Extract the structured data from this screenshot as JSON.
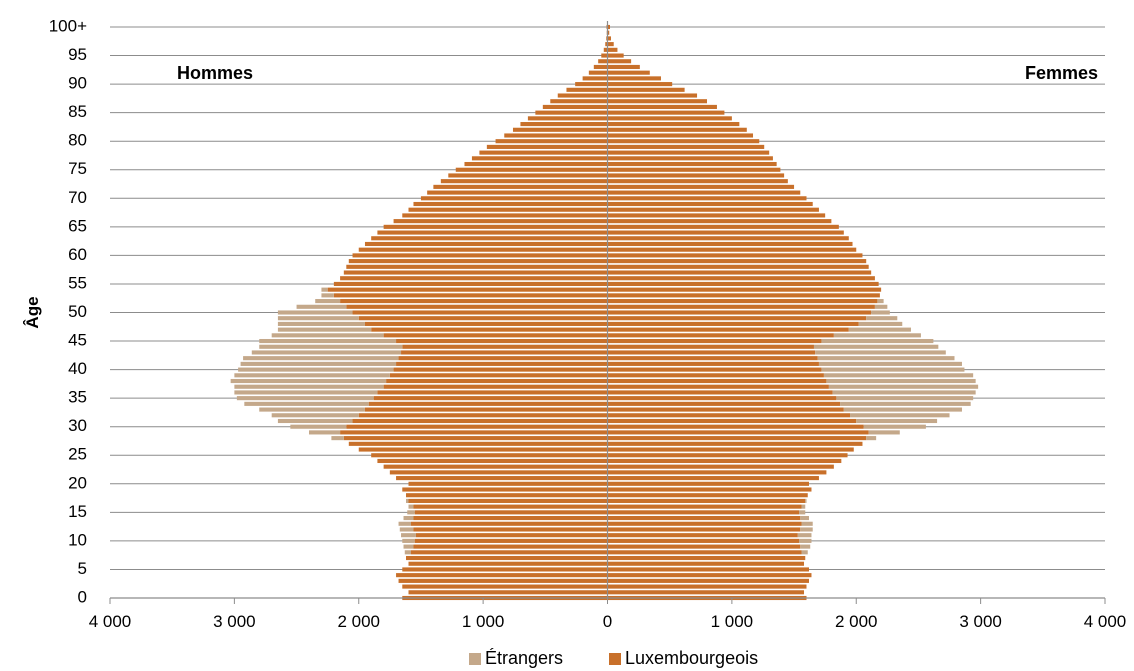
{
  "chart_data": {
    "type": "bar",
    "orientation": "horizontal-pyramid",
    "ylabel": "Âge",
    "left_label": "Hommes",
    "right_label": "Femmes",
    "xlim": [
      -4000,
      4000
    ],
    "x_ticks": [
      -4000,
      -3000,
      -2000,
      -1000,
      0,
      1000,
      2000,
      3000,
      4000
    ],
    "x_tick_labels": [
      "4 000",
      "3 000",
      "2 000",
      "1 000",
      "0",
      "1 000",
      "2 000",
      "3 000",
      "4 000"
    ],
    "y_ticks": [
      0,
      5,
      10,
      15,
      20,
      25,
      30,
      35,
      40,
      45,
      50,
      55,
      60,
      65,
      70,
      75,
      80,
      85,
      90,
      95,
      100
    ],
    "y_tick_labels": [
      "0",
      "5",
      "10",
      "15",
      "20",
      "25",
      "30",
      "35",
      "40",
      "45",
      "50",
      "55",
      "60",
      "65",
      "70",
      "75",
      "80",
      "85",
      "90",
      "95",
      "100+"
    ],
    "grid": true,
    "legend_position": "bottom",
    "stacked": true,
    "categories": [
      0,
      1,
      2,
      3,
      4,
      5,
      6,
      7,
      8,
      9,
      10,
      11,
      12,
      13,
      14,
      15,
      16,
      17,
      18,
      19,
      20,
      21,
      22,
      23,
      24,
      25,
      26,
      27,
      28,
      29,
      30,
      31,
      32,
      33,
      34,
      35,
      36,
      37,
      38,
      39,
      40,
      41,
      42,
      43,
      44,
      45,
      46,
      47,
      48,
      49,
      50,
      51,
      52,
      53,
      54,
      55,
      56,
      57,
      58,
      59,
      60,
      61,
      62,
      63,
      64,
      65,
      66,
      67,
      68,
      69,
      70,
      71,
      72,
      73,
      74,
      75,
      76,
      77,
      78,
      79,
      80,
      81,
      82,
      83,
      84,
      85,
      86,
      87,
      88,
      89,
      90,
      91,
      92,
      93,
      94,
      95,
      96,
      97,
      98,
      99,
      100
    ],
    "series": [
      {
        "name": "Luxembourgeois",
        "color": "#c8702a",
        "male": [
          1650,
          1600,
          1650,
          1680,
          1700,
          1650,
          1600,
          1620,
          1580,
          1560,
          1550,
          1540,
          1560,
          1580,
          1560,
          1550,
          1560,
          1600,
          1620,
          1650,
          1600,
          1700,
          1750,
          1800,
          1850,
          1900,
          2000,
          2080,
          2120,
          2150,
          2100,
          2050,
          2000,
          1950,
          1920,
          1880,
          1850,
          1800,
          1780,
          1750,
          1720,
          1700,
          1680,
          1660,
          1650,
          1700,
          1800,
          1900,
          1950,
          2000,
          2050,
          2100,
          2150,
          2200,
          2250,
          2200,
          2150,
          2120,
          2100,
          2080,
          2050,
          2000,
          1950,
          1900,
          1850,
          1800,
          1720,
          1650,
          1600,
          1560,
          1500,
          1450,
          1400,
          1340,
          1280,
          1220,
          1150,
          1090,
          1030,
          970,
          900,
          830,
          760,
          700,
          640,
          580,
          520,
          460,
          400,
          330,
          260,
          200,
          150,
          110,
          75,
          50,
          30,
          18,
          10,
          6,
          8
        ],
        "female": [
          1600,
          1580,
          1600,
          1620,
          1640,
          1620,
          1580,
          1590,
          1560,
          1550,
          1540,
          1530,
          1550,
          1560,
          1550,
          1540,
          1560,
          1590,
          1610,
          1640,
          1620,
          1700,
          1760,
          1820,
          1880,
          1930,
          1980,
          2050,
          2080,
          2100,
          2060,
          2000,
          1950,
          1900,
          1870,
          1840,
          1810,
          1780,
          1760,
          1740,
          1720,
          1700,
          1690,
          1670,
          1660,
          1720,
          1820,
          1940,
          2020,
          2080,
          2120,
          2150,
          2170,
          2190,
          2200,
          2180,
          2150,
          2120,
          2100,
          2080,
          2050,
          2000,
          1970,
          1940,
          1900,
          1860,
          1800,
          1750,
          1700,
          1650,
          1600,
          1550,
          1500,
          1450,
          1420,
          1390,
          1360,
          1330,
          1300,
          1260,
          1220,
          1170,
          1120,
          1060,
          1000,
          940,
          880,
          800,
          720,
          620,
          520,
          430,
          340,
          260,
          190,
          130,
          80,
          50,
          28,
          14,
          20
        ]
      },
      {
        "name": "Étrangers",
        "color": "#c4a88a",
        "male": [
          0,
          0,
          0,
          0,
          0,
          0,
          0,
          0,
          50,
          80,
          100,
          120,
          110,
          100,
          80,
          60,
          40,
          20,
          0,
          0,
          0,
          0,
          0,
          0,
          0,
          0,
          0,
          0,
          100,
          250,
          450,
          600,
          700,
          850,
          1000,
          1100,
          1150,
          1200,
          1250,
          1250,
          1250,
          1250,
          1250,
          1200,
          1150,
          1100,
          900,
          750,
          700,
          650,
          600,
          400,
          200,
          100,
          50,
          0,
          0,
          0,
          0,
          0,
          0,
          0,
          0,
          0,
          0,
          0,
          0,
          0,
          0,
          0,
          0,
          0,
          0,
          0,
          0,
          0,
          0,
          0,
          0,
          0,
          0,
          0,
          0,
          0,
          0,
          0,
          0,
          0,
          0,
          0,
          0,
          0,
          0,
          0,
          0,
          0,
          0,
          0,
          0,
          0,
          0
        ],
        "female": [
          0,
          0,
          0,
          0,
          0,
          0,
          0,
          0,
          50,
          80,
          100,
          110,
          100,
          90,
          70,
          50,
          30,
          10,
          0,
          0,
          0,
          0,
          0,
          0,
          0,
          0,
          0,
          0,
          80,
          250,
          500,
          650,
          800,
          950,
          1050,
          1100,
          1150,
          1200,
          1200,
          1200,
          1150,
          1150,
          1100,
          1050,
          1000,
          900,
          700,
          500,
          350,
          250,
          150,
          100,
          50,
          0,
          0,
          0,
          0,
          0,
          0,
          0,
          0,
          0,
          0,
          0,
          0,
          0,
          0,
          0,
          0,
          0,
          0,
          0,
          0,
          0,
          0,
          0,
          0,
          0,
          0,
          0,
          0,
          0,
          0,
          0,
          0,
          0,
          0,
          0,
          0,
          0,
          0,
          0,
          0,
          0,
          0,
          0,
          0,
          0,
          0,
          0,
          0
        ]
      }
    ]
  },
  "legend": {
    "items": [
      {
        "label": "Étrangers",
        "color": "#c4a88a"
      },
      {
        "label": "Luxembourgeois",
        "color": "#c8702a"
      }
    ]
  }
}
